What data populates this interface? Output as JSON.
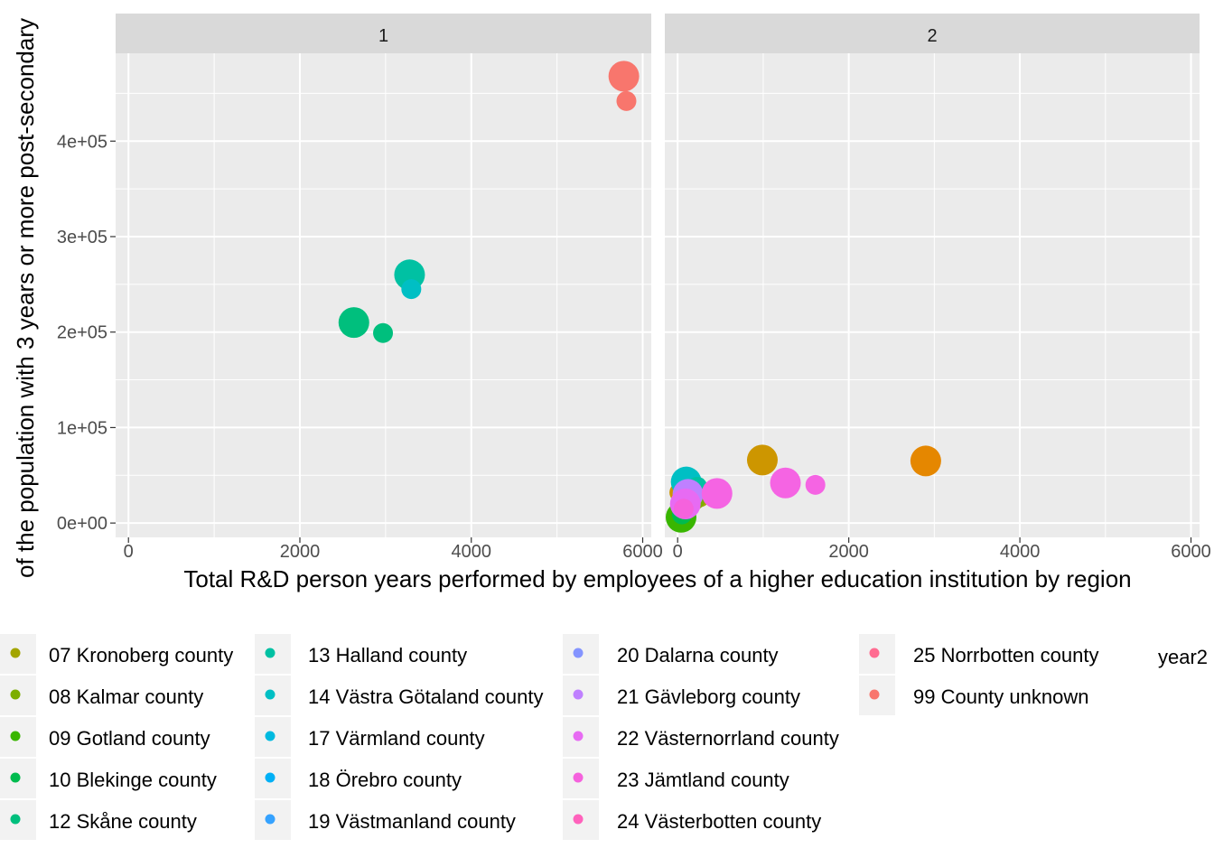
{
  "chart_data": {
    "type": "scatter",
    "facet_variable": "panel",
    "panels": [
      "1",
      "2"
    ],
    "xlabel": "Total R&D person years performed by employees of a higher education institution by region",
    "ylabel": "of the population with 3 years or more post-secondary",
    "xlim": [
      -150,
      6100
    ],
    "ylim": [
      -15000,
      492000
    ],
    "x_ticks": [
      0,
      2000,
      4000,
      6000
    ],
    "x_tick_labels": [
      "0",
      "2000",
      "4000",
      "6000"
    ],
    "y_ticks": [
      0,
      100000,
      200000,
      300000,
      400000
    ],
    "y_tick_labels": [
      "0e+00",
      "1e+05",
      "2e+05",
      "3e+05",
      "4e+05"
    ],
    "legend_title_partial": "year2",
    "legend": [
      {
        "label": "07 Kronoberg county",
        "color": "#A3A500"
      },
      {
        "label": "08 Kalmar county",
        "color": "#7CAE00"
      },
      {
        "label": "09 Gotland county",
        "color": "#39B600"
      },
      {
        "label": "10 Blekinge county",
        "color": "#00BB4E"
      },
      {
        "label": "12 Skåne county",
        "color": "#00BF7D"
      },
      {
        "label": "13 Halland county",
        "color": "#00C1A3"
      },
      {
        "label": "14 Västra Götaland county",
        "color": "#00BFC4"
      },
      {
        "label": "17 Värmland county",
        "color": "#00BAE0"
      },
      {
        "label": "18 Örebro county",
        "color": "#00B0F6"
      },
      {
        "label": "19 Västmanland county",
        "color": "#35A2FF"
      },
      {
        "label": "20 Dalarna county",
        "color": "#8494FF"
      },
      {
        "label": "21 Gävleborg county",
        "color": "#BF80FF"
      },
      {
        "label": "22 Västernorrland county",
        "color": "#E76BF3"
      },
      {
        "label": "23 Jämtland county",
        "color": "#F562DD"
      },
      {
        "label": "24 Västerbotten county",
        "color": "#FF62BC"
      },
      {
        "label": "25 Norrbotten county",
        "color": "#FF6C91"
      },
      {
        "label": "99 County unknown",
        "color": "#F8766D"
      }
    ],
    "series": [
      {
        "panel": "1",
        "color": "#F8766D",
        "x": 5780,
        "y": 468000,
        "size": "large"
      },
      {
        "panel": "1",
        "color": "#F8766D",
        "x": 5810,
        "y": 442000,
        "size": "small"
      },
      {
        "panel": "1",
        "color": "#00C1A3",
        "x": 3280,
        "y": 260000,
        "size": "large"
      },
      {
        "panel": "1",
        "color": "#00BFC4",
        "x": 3300,
        "y": 245000,
        "size": "small"
      },
      {
        "panel": "1",
        "color": "#00BF7D",
        "x": 2630,
        "y": 210000,
        "size": "large"
      },
      {
        "panel": "1",
        "color": "#00BF7D",
        "x": 2970,
        "y": 199000,
        "size": "small"
      },
      {
        "panel": "2",
        "color": "#39B600",
        "x": 40,
        "y": 6000,
        "size": "large"
      },
      {
        "panel": "2",
        "color": "#00BB4E",
        "x": 50,
        "y": 9000,
        "size": "small"
      },
      {
        "panel": "2",
        "color": "#CD9600",
        "x": 20,
        "y": 32000,
        "size": "small"
      },
      {
        "panel": "2",
        "color": "#A3A500",
        "x": 260,
        "y": 27000,
        "size": "small"
      },
      {
        "panel": "2",
        "color": "#7CAE00",
        "x": 200,
        "y": 24000,
        "size": "small"
      },
      {
        "panel": "2",
        "color": "#00BFC4",
        "x": 100,
        "y": 43000,
        "size": "large"
      },
      {
        "panel": "2",
        "color": "#00C1A3",
        "x": 230,
        "y": 38000,
        "size": "small"
      },
      {
        "panel": "2",
        "color": "#00B0F6",
        "x": 120,
        "y": 35000,
        "size": "small"
      },
      {
        "panel": "2",
        "color": "#00BAE0",
        "x": 160,
        "y": 29000,
        "size": "small"
      },
      {
        "panel": "2",
        "color": "#BF80FF",
        "x": 120,
        "y": 30000,
        "size": "large"
      },
      {
        "panel": "2",
        "color": "#E76BF3",
        "x": 90,
        "y": 20000,
        "size": "large"
      },
      {
        "panel": "2",
        "color": "#F562DD",
        "x": 70,
        "y": 15000,
        "size": "small"
      },
      {
        "panel": "2",
        "color": "#FF62BC",
        "x": 430,
        "y": 32000,
        "size": "small"
      },
      {
        "panel": "2",
        "color": "#F564E3",
        "x": 460,
        "y": 31000,
        "size": "large"
      },
      {
        "panel": "2",
        "color": "#CD9600",
        "x": 990,
        "y": 66000,
        "size": "large"
      },
      {
        "panel": "2",
        "color": "#E58700",
        "x": 2900,
        "y": 65000,
        "size": "large"
      },
      {
        "panel": "2",
        "color": "#E58700",
        "x": 2950,
        "y": 62000,
        "size": "small"
      },
      {
        "panel": "2",
        "color": "#F564E3",
        "x": 1260,
        "y": 42000,
        "size": "large"
      },
      {
        "panel": "2",
        "color": "#F564E3",
        "x": 1610,
        "y": 40000,
        "size": "small"
      }
    ]
  }
}
